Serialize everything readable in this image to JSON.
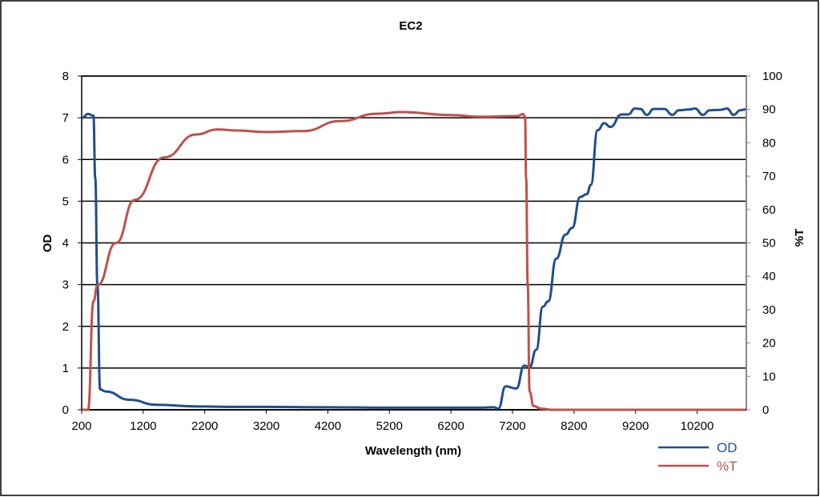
{
  "chart_data": {
    "type": "line",
    "title": "EC2",
    "xlabel": "Wavelength (nm)",
    "ylabel": "OD",
    "y2label": "%T",
    "xlim": [
      200,
      11000
    ],
    "ylim": [
      0,
      8
    ],
    "y2lim": [
      0,
      100
    ],
    "xticks": [
      "200",
      "1200",
      "2200",
      "3200",
      "4200",
      "5200",
      "6200",
      "7200",
      "8200",
      "9200",
      "10200"
    ],
    "yticks": [
      "0",
      "1",
      "2",
      "3",
      "4",
      "5",
      "6",
      "7",
      "8"
    ],
    "y2ticks": [
      "0",
      "10",
      "20",
      "30",
      "40",
      "50",
      "60",
      "70",
      "80",
      "90",
      "100"
    ],
    "grid": "horizontal",
    "legend": "bottom-right",
    "series": [
      {
        "name": "OD",
        "axis": "left",
        "color": "#1f4e8c",
        "x": [
          204,
          304,
          391,
          421,
          456,
          499,
          586,
          976,
          1409,
          2060,
          2710,
          3200,
          4200,
          5200,
          6200,
          6676,
          6893,
          6971,
          7088,
          7262,
          7392,
          7478,
          7586,
          7694,
          7781,
          7911,
          8063,
          8170,
          8300,
          8408,
          8473,
          8583,
          8691,
          8791,
          8973,
          9082,
          9190,
          9277,
          9385,
          9494,
          9667,
          9797,
          9905,
          10079,
          10165,
          10295,
          10404,
          10577,
          10685,
          10794,
          10902,
          10989
        ],
        "y": [
          7.0,
          7.09,
          7.05,
          5.55,
          2.98,
          0.49,
          0.44,
          0.24,
          0.12,
          0.08,
          0.07,
          0.07,
          0.06,
          0.05,
          0.05,
          0.05,
          0.06,
          0.03,
          0.56,
          0.51,
          1.06,
          1.02,
          1.44,
          2.47,
          2.6,
          3.62,
          4.2,
          4.36,
          5.1,
          5.17,
          5.39,
          6.7,
          6.87,
          6.78,
          7.08,
          7.08,
          7.22,
          7.21,
          7.07,
          7.21,
          7.21,
          7.07,
          7.18,
          7.2,
          7.22,
          7.07,
          7.18,
          7.19,
          7.22,
          7.07,
          7.18,
          7.2
        ]
      },
      {
        "name": "%T",
        "axis": "right",
        "color": "#c0504d",
        "x": [
          204,
          304,
          391,
          456,
          759,
          1062,
          1539,
          2060,
          2407,
          2710,
          3200,
          3800,
          4400,
          5000,
          5400,
          6200,
          6676,
          7283,
          7370,
          7404,
          7422,
          7448,
          7478,
          7543,
          7673,
          7850,
          10989
        ],
        "y": [
          0,
          0,
          32.5,
          37.3,
          50,
          62.9,
          75.6,
          82.5,
          84,
          83.7,
          83.2,
          83.5,
          86.5,
          88.7,
          89.2,
          88.3,
          87.8,
          88,
          88.6,
          87.8,
          69.4,
          37.5,
          5.5,
          1.1,
          0.3,
          0,
          0
        ]
      }
    ]
  }
}
